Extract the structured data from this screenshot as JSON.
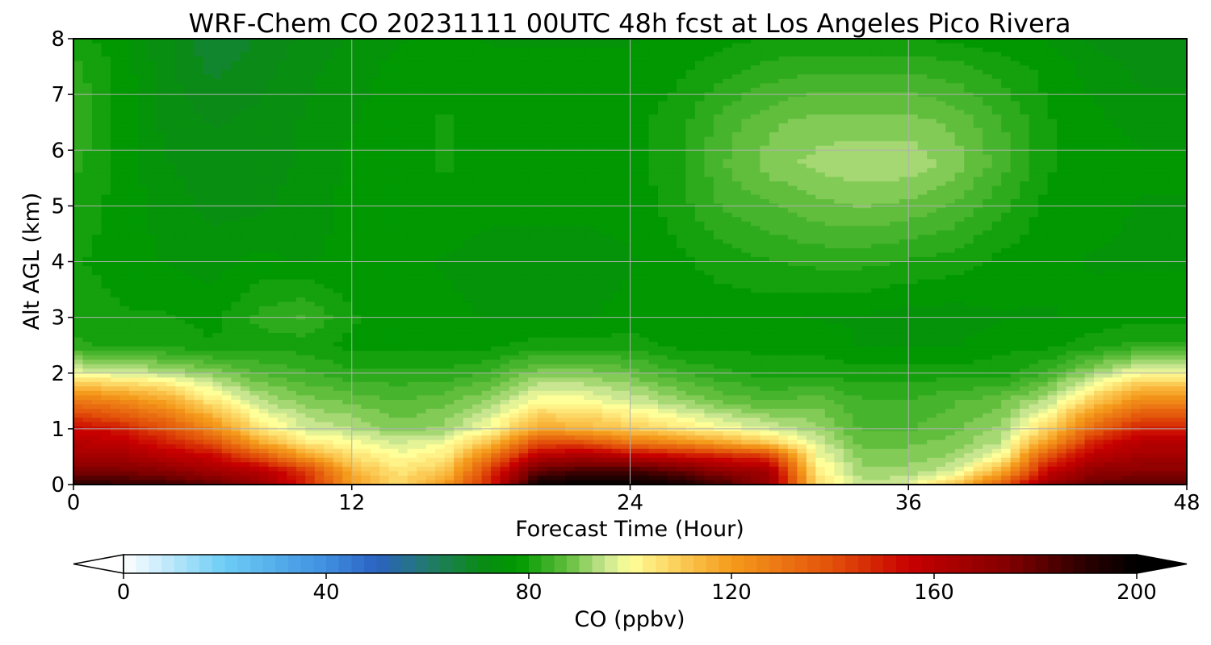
{
  "chart_data": {
    "type": "heatmap",
    "title": "WRF-Chem CO  20231111 00UTC 48h fcst at Los Angeles Pico Rivera",
    "xlabel": "Forecast Time (Hour)",
    "ylabel": "Alt AGL (km)",
    "xlim": [
      0,
      48
    ],
    "ylim": [
      0,
      8
    ],
    "xticks": [
      0,
      12,
      24,
      36,
      48
    ],
    "yticks": [
      0,
      1,
      2,
      3,
      4,
      5,
      6,
      7,
      8
    ],
    "grid": true,
    "colorbar": {
      "label": "CO  (ppbv)",
      "min": 0,
      "max": 200,
      "ticks": [
        0,
        40,
        80,
        120,
        160,
        200
      ],
      "extend": "both",
      "orientation": "horizontal",
      "placement": "bottom",
      "color_stops": [
        {
          "value": 0,
          "color": "#ffffff"
        },
        {
          "value": 20,
          "color": "#6ccdf5"
        },
        {
          "value": 40,
          "color": "#3f8fe0"
        },
        {
          "value": 50,
          "color": "#2c62c2"
        },
        {
          "value": 60,
          "color": "#227a6e"
        },
        {
          "value": 70,
          "color": "#0b8a18"
        },
        {
          "value": 78,
          "color": "#009900"
        },
        {
          "value": 88,
          "color": "#66c040"
        },
        {
          "value": 95,
          "color": "#c8e690"
        },
        {
          "value": 100,
          "color": "#ffff99"
        },
        {
          "value": 110,
          "color": "#fbcb55"
        },
        {
          "value": 120,
          "color": "#f59b1b"
        },
        {
          "value": 140,
          "color": "#e2500a"
        },
        {
          "value": 155,
          "color": "#c80000"
        },
        {
          "value": 175,
          "color": "#800000"
        },
        {
          "value": 190,
          "color": "#2a0000"
        },
        {
          "value": 200,
          "color": "#000000"
        }
      ]
    },
    "field": {
      "x_hours": [
        0,
        2,
        4,
        6,
        8,
        10,
        12,
        14,
        16,
        18,
        20,
        22,
        24,
        26,
        28,
        30,
        32,
        34,
        36,
        38,
        40,
        42,
        44,
        46,
        48
      ],
      "alt_km": [
        0,
        0.25,
        0.5,
        0.75,
        1,
        1.5,
        2,
        2.5,
        3,
        4,
        5,
        5.75,
        6.5,
        7.5,
        8
      ],
      "co_ppbv": [
        [
          190,
          188,
          186,
          180,
          168,
          150,
          120,
          108,
          120,
          150,
          196,
          200,
          200,
          195,
          185,
          170,
          108,
          94,
          96,
          110,
          135,
          168,
          180,
          182,
          182
        ],
        [
          175,
          175,
          172,
          165,
          160,
          145,
          115,
          105,
          110,
          145,
          180,
          185,
          185,
          180,
          170,
          165,
          104,
          92,
          92,
          96,
          115,
          155,
          170,
          172,
          172
        ],
        [
          165,
          165,
          160,
          155,
          140,
          120,
          106,
          100,
          104,
          130,
          160,
          165,
          160,
          155,
          150,
          145,
          100,
          90,
          90,
          92,
          100,
          140,
          160,
          165,
          165
        ],
        [
          160,
          158,
          150,
          140,
          118,
          104,
          100,
          96,
          98,
          112,
          140,
          140,
          130,
          125,
          118,
          110,
          96,
          88,
          88,
          90,
          94,
          120,
          150,
          160,
          160
        ],
        [
          155,
          150,
          140,
          125,
          105,
          96,
          94,
          90,
          92,
          100,
          118,
          115,
          110,
          105,
          100,
          96,
          92,
          86,
          86,
          88,
          92,
          108,
          135,
          150,
          150
        ],
        [
          130,
          125,
          118,
          104,
          94,
          90,
          88,
          86,
          88,
          92,
          100,
          100,
          96,
          92,
          88,
          86,
          88,
          84,
          84,
          86,
          88,
          94,
          110,
          125,
          125
        ],
        [
          98,
          96,
          94,
          90,
          86,
          84,
          82,
          82,
          82,
          84,
          90,
          90,
          88,
          84,
          82,
          80,
          80,
          80,
          80,
          80,
          80,
          84,
          92,
          100,
          100
        ],
        [
          82,
          80,
          80,
          79,
          80,
          80,
          78,
          78,
          78,
          78,
          80,
          80,
          80,
          78,
          78,
          78,
          78,
          76,
          76,
          76,
          78,
          78,
          80,
          82,
          82
        ],
        [
          80,
          79,
          79,
          78,
          82,
          84,
          79,
          78,
          77,
          76,
          76,
          76,
          77,
          77,
          77,
          77,
          76,
          76,
          75,
          75,
          76,
          76,
          77,
          78,
          78
        ],
        [
          79,
          78,
          76,
          75,
          77,
          76,
          77,
          77,
          76,
          75,
          75,
          75,
          76,
          78,
          80,
          81,
          82,
          82,
          81,
          80,
          78,
          77,
          76,
          76,
          76
        ],
        [
          80,
          78,
          75,
          73,
          73,
          75,
          77,
          78,
          78,
          77,
          77,
          77,
          77,
          80,
          84,
          86,
          88,
          89,
          88,
          86,
          82,
          78,
          77,
          76,
          76
        ],
        [
          82,
          78,
          74,
          72,
          73,
          74,
          77,
          78,
          79,
          78,
          78,
          78,
          78,
          80,
          86,
          90,
          92,
          93,
          93,
          90,
          85,
          79,
          78,
          77,
          77
        ],
        [
          84,
          78,
          73,
          71,
          72,
          74,
          76,
          78,
          79,
          78,
          78,
          78,
          78,
          80,
          85,
          88,
          90,
          90,
          90,
          88,
          84,
          79,
          77,
          75,
          75
        ],
        [
          82,
          78,
          72,
          68,
          70,
          73,
          75,
          77,
          78,
          77,
          77,
          77,
          77,
          78,
          80,
          82,
          83,
          83,
          83,
          82,
          80,
          78,
          75,
          73,
          73
        ],
        [
          80,
          77,
          72,
          66,
          69,
          72,
          74,
          76,
          77,
          76,
          76,
          76,
          76,
          77,
          78,
          79,
          79,
          79,
          79,
          78,
          77,
          76,
          73,
          72,
          72
        ]
      ]
    }
  }
}
